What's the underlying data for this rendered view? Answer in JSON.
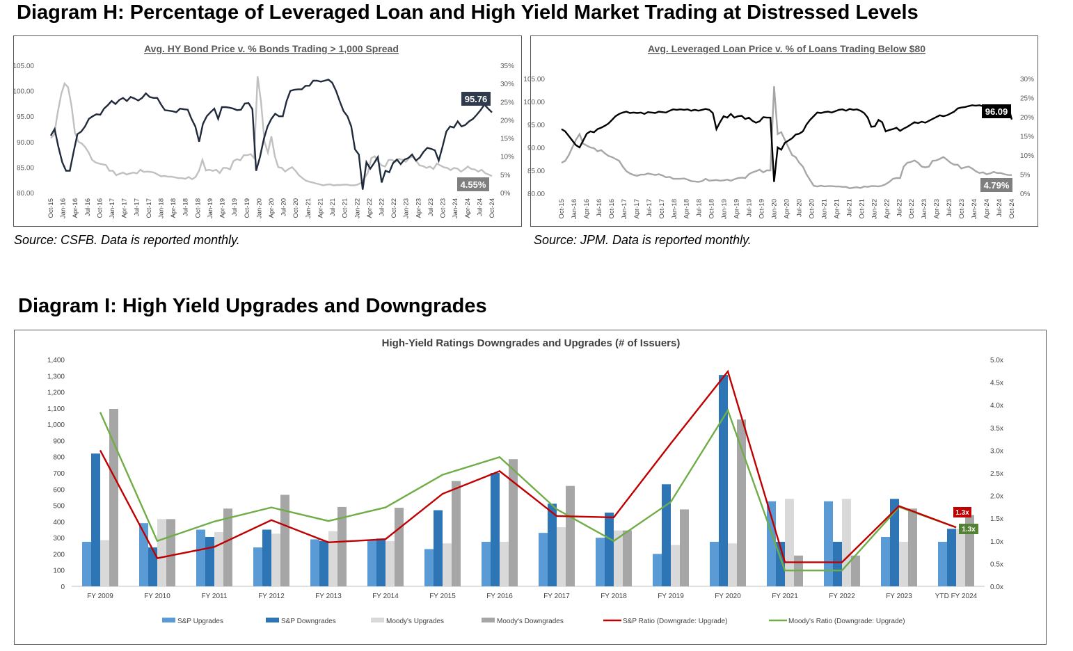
{
  "headings": {
    "diagram_h": "Diagram H: Percentage of Leveraged Loan and High Yield Market Trading at Distressed Levels",
    "diagram_i": "Diagram I: High Yield Upgrades and Downgrades"
  },
  "sources": {
    "hy": "Source: CSFB. Data is reported monthly.",
    "loan": "Source: JPM. Data is reported monthly."
  },
  "colors": {
    "price_line": "#1f2a3a",
    "price_line_loan": "#000000",
    "pct_line": "#c0c0c0",
    "pct_line_loan": "#a6a6a6",
    "sp_up": "#5b9bd5",
    "sp_down": "#2e75b6",
    "moody_up": "#d9d9d9",
    "moody_down": "#a6a6a6",
    "sp_ratio": "#c00000",
    "moody_ratio": "#70ad47",
    "callout_dark": "#2f3a4c",
    "callout_black": "#000000",
    "callout_grey": "#7f7f7f"
  },
  "chart_data": [
    {
      "type": "line",
      "title": "Avg. HY Bond Price v. % Bonds Trading > 1,000 Spread",
      "x_ticks": [
        "Oct-15",
        "Jan-16",
        "Apr-16",
        "Jul-16",
        "Oct-16",
        "Jan-17",
        "Apr-17",
        "Jul-17",
        "Oct-17",
        "Jan-18",
        "Apr-18",
        "Jul-18",
        "Oct-18",
        "Jan-19",
        "Apr-19",
        "Jul-19",
        "Oct-19",
        "Jan-20",
        "Apr-20",
        "Jul-20",
        "Oct-20",
        "Jan-21",
        "Apr-21",
        "Jul-21",
        "Oct-21",
        "Jan-22",
        "Apr-22",
        "Jul-22",
        "Oct-22",
        "Jan-23",
        "Apr-23",
        "Jul-23",
        "Oct-23",
        "Jan-24",
        "Apr-24",
        "Jul-24",
        "Oct-24"
      ],
      "y_left": {
        "ticks": [
          "80.00",
          "85.00",
          "90.00",
          "95.00",
          "100.00",
          "105.00"
        ],
        "min": 80,
        "max": 105
      },
      "y_right": {
        "ticks": [
          "0%",
          "5%",
          "10%",
          "15%",
          "20%",
          "25%",
          "30%",
          "35%"
        ],
        "min": 0,
        "max": 35
      },
      "series": [
        {
          "values": [
            91.2,
            92.5,
            89.0,
            86.0,
            84.3,
            84.3,
            88.0,
            91.5,
            92.0,
            93.0,
            94.5,
            95.0,
            95.4,
            95.3,
            96.5,
            97.2,
            98.0,
            97.4,
            98.2,
            98.6,
            98.0,
            98.8,
            98.5,
            98.1,
            98.6,
            99.5,
            98.8,
            98.6,
            98.6,
            97.3,
            96.2,
            96.1,
            96.0,
            95.8,
            96.5,
            96.4,
            96.3,
            94.5,
            93.0,
            90.0,
            93.5,
            95.0,
            95.8,
            96.5,
            94.5,
            96.8,
            96.8,
            96.7,
            96.5,
            96.2,
            96.3,
            97.5,
            97.6,
            96.4,
            84.3,
            87.0,
            90.5,
            93.0,
            94.5,
            95.5,
            95.0,
            95.0,
            98.0,
            100.0,
            100.2,
            100.3,
            100.3,
            101.0,
            101.0,
            102.0,
            102.0,
            101.8,
            102.0,
            102.2,
            101.6,
            100.0,
            97.9,
            96.0,
            95.0,
            93.0,
            88.5,
            87.5,
            80.6,
            86.0,
            84.7,
            85.8,
            87.0,
            82.0,
            84.3,
            84.0,
            85.8,
            86.5,
            85.6,
            86.5,
            86.8,
            87.5,
            86.3,
            86.9,
            88.0,
            88.8,
            88.6,
            88.3,
            86.3,
            89.0,
            92.0,
            93.0,
            92.8,
            94.0,
            93.0,
            93.3,
            94.0,
            94.5,
            95.3,
            96.2,
            97.3,
            96.5,
            95.76
          ]
        },
        {
          "values": [
            15.0,
            16.0,
            22.0,
            27.0,
            30.0,
            29.0,
            24.0,
            16.5,
            14.0,
            13.5,
            12.5,
            11.0,
            9.0,
            8.3,
            8.0,
            7.8,
            7.6,
            6.0,
            6.0,
            4.8,
            5.2,
            5.5,
            5.0,
            5.3,
            5.5,
            5.3,
            6.3,
            5.7,
            5.8,
            5.7,
            5.5,
            5.0,
            4.5,
            4.6,
            4.4,
            4.4,
            4.2,
            4.0,
            4.0,
            3.8,
            4.3,
            3.7,
            4.3,
            6.0,
            9.0,
            6.1,
            6.3,
            6.0,
            6.3,
            5.4,
            6.8,
            6.8,
            6.4,
            8.7,
            9.2,
            8.9,
            10.3,
            10.3,
            10.6,
            9.5,
            32.0,
            25.0,
            14.0,
            11.0,
            15.5,
            10.0,
            7.0,
            6.8,
            5.8,
            6.5,
            7.0,
            6.0,
            4.8,
            4.0,
            3.3,
            3.0,
            2.8,
            2.5,
            2.3,
            2.0,
            2.2,
            2.3,
            2.0,
            2.1,
            2.1,
            2.2,
            2.2,
            2.0,
            2.0,
            2.2,
            2.7,
            4.0,
            5.5,
            9.5,
            10.0,
            8.5,
            7.5,
            7.2,
            9.0,
            9.0,
            8.5,
            9.3,
            9.0,
            8.5,
            9.6,
            9.9,
            8.8,
            7.5,
            7.3,
            6.8,
            7.2,
            6.5,
            8.0,
            7.5,
            7.0,
            6.8,
            6.2,
            6.8,
            6.6,
            5.8,
            6.4,
            7.2,
            6.5,
            6.4,
            5.8,
            6.3,
            5.4,
            5.0,
            4.55
          ]
        }
      ],
      "callouts": [
        "95.76",
        "4.55%"
      ]
    },
    {
      "type": "line",
      "title": "Avg. Leveraged Loan Price v. % of Loans Trading Below $80",
      "x_ticks": [
        "Oct-15",
        "Jan-16",
        "Apr-16",
        "Jul-16",
        "Oct-16",
        "Jan-17",
        "Apr-17",
        "Jul-17",
        "Oct-17",
        "Jan-18",
        "Apr-18",
        "Jul-18",
        "Oct-18",
        "Jan-19",
        "Apr-19",
        "Jul-19",
        "Oct-19",
        "Jan-20",
        "Apr-20",
        "Jul-20",
        "Oct-20",
        "Jan-21",
        "Apr-21",
        "Jul-21",
        "Oct-21",
        "Jan-22",
        "Apr-22",
        "Jul-22",
        "Oct-22",
        "Jan-23",
        "Apr-23",
        "Jul-23",
        "Oct-23",
        "Jan-24",
        "Apr-24",
        "Jul-24",
        "Oct-24"
      ],
      "y_left": {
        "ticks": [
          "80.00",
          "85.00",
          "90.00",
          "95.00",
          "100.00",
          "105.00"
        ],
        "min": 80,
        "max": 105
      },
      "y_right": {
        "ticks": [
          "0%",
          "5%",
          "10%",
          "15%",
          "20%",
          "25%",
          "30%"
        ],
        "min": 0,
        "max": 30
      },
      "series": [
        {
          "values": [
            94.0,
            93.5,
            92.5,
            91.5,
            90.5,
            90.0,
            91.5,
            93.0,
            93.5,
            93.3,
            94.0,
            94.3,
            94.7,
            95.2,
            96.0,
            96.8,
            97.3,
            97.6,
            97.8,
            97.5,
            97.6,
            97.5,
            97.6,
            97.3,
            97.7,
            97.6,
            97.5,
            97.8,
            97.7,
            97.6,
            98.0,
            98.3,
            98.2,
            98.3,
            98.2,
            98.3,
            98.0,
            98.2,
            98.0,
            98.2,
            98.4,
            98.2,
            97.5,
            94.0,
            95.5,
            96.8,
            96.5,
            97.3,
            96.5,
            96.8,
            96.9,
            96.2,
            96.5,
            95.8,
            95.4,
            95.7,
            96.6,
            96.5,
            96.5,
            82.5,
            90.0,
            89.5,
            91.0,
            91.5,
            92.0,
            92.8,
            93.0,
            93.5,
            95.0,
            96.0,
            96.8,
            97.6,
            97.5,
            97.7,
            97.8,
            97.6,
            97.9,
            98.2,
            98.3,
            98.0,
            98.4,
            98.2,
            98.3,
            98.0,
            97.5,
            96.5,
            94.5,
            94.6,
            96.0,
            95.5,
            93.5,
            93.8,
            94.0,
            94.3,
            93.6,
            94.1,
            94.5,
            95.0,
            95.5,
            95.3,
            95.6,
            95.4,
            95.8,
            96.2,
            96.6,
            97.0,
            96.8,
            97.0,
            97.4,
            97.8,
            98.5,
            98.7,
            98.8,
            99.0,
            99.2,
            99.1,
            99.2,
            99.0,
            98.7,
            98.8,
            98.9,
            98.7,
            98.6,
            98.8,
            99.1,
            96.09
          ]
        },
        {
          "values": [
            8.0,
            8.5,
            10.0,
            12.0,
            14.0,
            15.5,
            13.0,
            12.5,
            12.0,
            11.8,
            11.0,
            11.3,
            10.5,
            9.8,
            9.5,
            9.0,
            8.5,
            7.0,
            5.8,
            5.2,
            4.8,
            4.6,
            4.9,
            4.9,
            5.2,
            5.0,
            4.8,
            5.0,
            4.7,
            4.2,
            4.3,
            3.8,
            3.8,
            3.8,
            3.9,
            3.6,
            3.2,
            3.1,
            3.0,
            3.2,
            3.8,
            3.3,
            3.4,
            3.5,
            3.3,
            3.4,
            3.6,
            3.3,
            3.7,
            4.0,
            4.1,
            4.0,
            5.0,
            5.5,
            5.8,
            6.2,
            5.5,
            6.0,
            6.0,
            28.0,
            15.5,
            16.0,
            14.0,
            12.0,
            10.0,
            9.5,
            8.0,
            7.0,
            5.0,
            3.5,
            2.0,
            1.8,
            2.0,
            1.8,
            1.9,
            1.9,
            1.8,
            1.8,
            1.7,
            1.7,
            1.3,
            1.5,
            1.6,
            1.4,
            1.8,
            1.7,
            1.9,
            1.9,
            1.8,
            2.0,
            2.4,
            3.0,
            3.8,
            4.0,
            4.0,
            7.0,
            8.0,
            8.2,
            8.6,
            8.0,
            7.0,
            6.8,
            7.0,
            8.5,
            8.6,
            9.0,
            9.5,
            8.8,
            8.0,
            7.5,
            7.5,
            6.5,
            6.8,
            7.0,
            6.5,
            5.8,
            5.3,
            5.5,
            5.0,
            5.2,
            5.6,
            5.3,
            5.3,
            5.0,
            4.8,
            4.79
          ]
        }
      ],
      "callouts": [
        "96.09",
        "4.79%"
      ]
    },
    {
      "type": "bar",
      "title": "High-Yield Ratings Downgrades and Upgrades (# of Issuers)",
      "categories": [
        "FY 2009",
        "FY 2010",
        "FY 2011",
        "FY 2012",
        "FY 2013",
        "FY 2014",
        "FY 2015",
        "FY 2016",
        "FY 2017",
        "FY 2018",
        "FY 2019",
        "FY 2020",
        "FY 2021",
        "FY 2022",
        "FY 2023",
        "YTD FY 2024"
      ],
      "y_left": {
        "ticks": [
          "0",
          "100",
          "200",
          "300",
          "400",
          "500",
          "600",
          "700",
          "800",
          "900",
          "1,000",
          "1,100",
          "1,200",
          "1,300",
          "1,400"
        ],
        "min": 0,
        "max": 1400
      },
      "y_right": {
        "ticks": [
          "0.0x",
          "0.5x",
          "1.0x",
          "1.5x",
          "2.0x",
          "2.5x",
          "3.0x",
          "3.5x",
          "4.0x",
          "4.5x",
          "5.0x"
        ],
        "min": 0,
        "max": 5
      },
      "series": [
        {
          "name": "S&P Upgrades",
          "values": [
            275,
            390,
            350,
            240,
            290,
            285,
            230,
            275,
            330,
            300,
            200,
            275,
            525,
            525,
            305,
            275
          ]
        },
        {
          "name": "S&P Downgrades",
          "values": [
            820,
            240,
            305,
            350,
            280,
            295,
            470,
            700,
            510,
            455,
            630,
            1305,
            275,
            275,
            540,
            355
          ]
        },
        {
          "name": "Moody's Upgrades",
          "values": [
            285,
            415,
            335,
            325,
            340,
            280,
            265,
            275,
            365,
            345,
            255,
            265,
            540,
            540,
            275,
            355
          ]
        },
        {
          "name": "Moody's Downgrades",
          "values": [
            1095,
            415,
            480,
            565,
            490,
            485,
            650,
            785,
            620,
            345,
            475,
            1030,
            190,
            190,
            480,
            440
          ]
        },
        {
          "name": "S&P Ratio (Downgrade: Upgrade)",
          "values": [
            3.0,
            0.62,
            0.87,
            1.46,
            0.97,
            1.04,
            2.04,
            2.54,
            1.55,
            1.52,
            3.15,
            4.74,
            0.53,
            0.53,
            1.77,
            1.3
          ]
        },
        {
          "name": "Moody's Ratio (Downgrade: Upgrade)",
          "values": [
            3.84,
            1.0,
            1.43,
            1.74,
            1.44,
            1.74,
            2.46,
            2.85,
            1.7,
            1.0,
            1.86,
            3.88,
            0.35,
            0.35,
            1.75,
            1.3
          ]
        }
      ],
      "callouts": [
        "1.3x",
        "1.3x"
      ]
    }
  ]
}
